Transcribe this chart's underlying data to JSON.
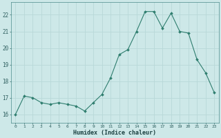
{
  "x": [
    0,
    1,
    2,
    3,
    4,
    5,
    6,
    7,
    8,
    9,
    10,
    11,
    12,
    13,
    14,
    15,
    16,
    17,
    18,
    19,
    20,
    21,
    22,
    23
  ],
  "y": [
    16.0,
    17.1,
    17.0,
    16.7,
    16.6,
    16.7,
    16.6,
    16.5,
    16.2,
    16.7,
    17.2,
    18.2,
    19.6,
    19.9,
    21.0,
    22.2,
    22.2,
    21.2,
    22.1,
    21.0,
    20.9,
    19.3,
    18.5,
    17.3
  ],
  "line_color": "#2e7d6e",
  "marker": "D",
  "marker_size": 2.0,
  "bg_color": "#cde8e8",
  "grid_color_major": "#b8d8d8",
  "grid_color_minor": "#d4ecec",
  "xlabel": "Humidex (Indice chaleur)",
  "xlim": [
    -0.5,
    23.5
  ],
  "ylim": [
    15.5,
    22.75
  ],
  "yticks": [
    16,
    17,
    18,
    19,
    20,
    21,
    22
  ],
  "xticks": [
    0,
    1,
    2,
    3,
    4,
    5,
    6,
    7,
    8,
    9,
    10,
    11,
    12,
    13,
    14,
    15,
    16,
    17,
    18,
    19,
    20,
    21,
    22,
    23
  ]
}
